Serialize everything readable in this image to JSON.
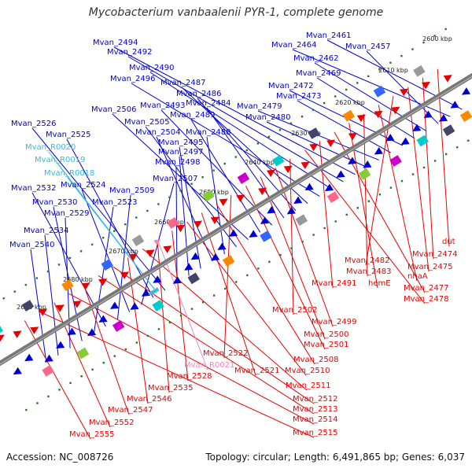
{
  "title": "Mycobacterium vanbaalenii PYR-1, complete genome",
  "footer": {
    "accession": "Accession: NC_008726",
    "summary": "Topology: circular; Length: 6,491,865 bp; Genes: 6,037"
  },
  "colors": {
    "forward": "#0000cc",
    "reverse": "#e80000",
    "rna": "#33bbdd",
    "pseudo_rna": "#ee88bb",
    "backbone": "#777777",
    "ticks": "#227722"
  },
  "ruler_labels": [
    "2600 kbp",
    "2610 kbp",
    "2620 kbp",
    "2630 kbp",
    "2640 kbp",
    "2650 kbp",
    "2660 kbp",
    "2670 kbp",
    "2680 kbp",
    "2690 kbp"
  ],
  "forward_labels": [
    "Mvan_2461",
    "Mvan_2464",
    "Mvan_2457",
    "Mvan_2462",
    "Mvan_2469",
    "Mvan_2472",
    "Mvan_2473",
    "Mvan_2479",
    "Mvan_2480",
    "Mvan_2494",
    "Mvan_2492",
    "Mvan_2490",
    "Mvan_2496",
    "Mvan_2487",
    "Mvan_2486",
    "Mvan_2484",
    "Mvan_2493",
    "Mvan_2489",
    "Mvan_2506",
    "Mvan_2505",
    "Mvan_2488",
    "Mvan_2504",
    "Mvan_2495",
    "Mvan_2497",
    "Mvan_2498",
    "Mvan_2526",
    "Mvan_2525",
    "Mvan_2507",
    "Mvan_2524",
    "Mvan_2509",
    "Mvan_2532",
    "Mvan_2523",
    "Mvan_2530",
    "Mvan_2529",
    "Mvan_2534",
    "Mvan_2540"
  ],
  "rna_labels": [
    "Mvan_R0020",
    "Mvan_R0019",
    "Mvan_R0018"
  ],
  "reverse_labels": [
    "dut",
    "Mvan_2474",
    "Mvan_2475",
    "Mvan_2482",
    "nhaA",
    "Mvan_2483",
    "hemE",
    "Mvan_2477",
    "Mvan_2491",
    "Mvan_2478",
    "Mvan_2502",
    "Mvan_2499",
    "Mvan_2500",
    "Mvan_2501",
    "Mvan_2522",
    "Mvan_2508",
    "Mvan_2521",
    "Mvan_2510",
    "Mvan_2528",
    "Mvan_2535",
    "Mvan_2511",
    "Mvan_2546",
    "Mvan_2512",
    "Mvan_2513",
    "Mvan_2547",
    "Mvan_2514",
    "Mvan_2552",
    "Mvan_2515",
    "Mvan_2555"
  ],
  "pseudo_labels": [
    "Mvan_R0021"
  ]
}
